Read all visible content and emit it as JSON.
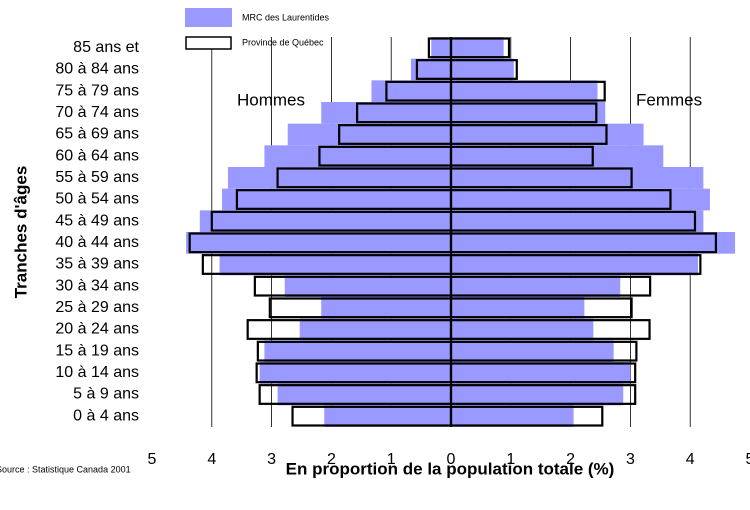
{
  "chart_data": {
    "type": "pyramid",
    "ylabel": "Tranches d'âges",
    "xlabel": "En proportion de la population totale (%)",
    "source": "Source : Statistique Canada 2001",
    "sides": [
      "Hommes",
      "Femmes"
    ],
    "categories": [
      "0 à 4 ans",
      "5 à 9 ans",
      "10 à 14 ans",
      "15 à 19 ans",
      "20 à 24 ans",
      "25 à 29 ans",
      "30 à 34 ans",
      "35 à 39 ans",
      "40 à 44 ans",
      "45 à 49 ans",
      "50 à 54 ans",
      "55 à 59 ans",
      "60 à 64 ans",
      "65 à 69 ans",
      "70 à 74 ans",
      "75 à 79 ans",
      "80 à 84 ans",
      "85 ans et"
    ],
    "series": [
      {
        "name": "MRC des Laurentides",
        "color": "#9999ff",
        "style": "filled",
        "left": [
          2.12,
          2.9,
          3.2,
          3.12,
          2.53,
          2.17,
          2.78,
          3.87,
          4.43,
          4.2,
          3.83,
          3.73,
          3.12,
          2.73,
          2.17,
          1.33,
          0.67,
          0.33
        ],
        "right": [
          2.05,
          2.88,
          3.0,
          2.72,
          2.38,
          2.23,
          2.83,
          4.13,
          4.75,
          4.22,
          4.33,
          4.22,
          3.55,
          3.22,
          2.58,
          2.45,
          1.05,
          0.88
        ]
      },
      {
        "name": "Province de Québec",
        "color": "#000000",
        "style": "outline",
        "left": [
          2.65,
          3.2,
          3.25,
          3.23,
          3.4,
          3.03,
          3.28,
          4.15,
          4.37,
          4.0,
          3.58,
          2.9,
          2.2,
          1.87,
          1.57,
          1.08,
          0.57,
          0.37
        ],
        "right": [
          2.53,
          3.08,
          3.08,
          3.1,
          3.32,
          3.02,
          3.33,
          4.17,
          4.43,
          4.08,
          3.67,
          3.02,
          2.37,
          2.6,
          2.43,
          2.57,
          1.1,
          0.97
        ]
      }
    ],
    "xlim": [
      -5,
      5
    ],
    "xticks": [
      {
        "value": -5,
        "label": "5"
      },
      {
        "value": -4,
        "label": "4"
      },
      {
        "value": -3,
        "label": "3"
      },
      {
        "value": -2,
        "label": "2"
      },
      {
        "value": -1,
        "label": "1"
      },
      0,
      1,
      2,
      3,
      4,
      5
    ],
    "grid": true
  }
}
